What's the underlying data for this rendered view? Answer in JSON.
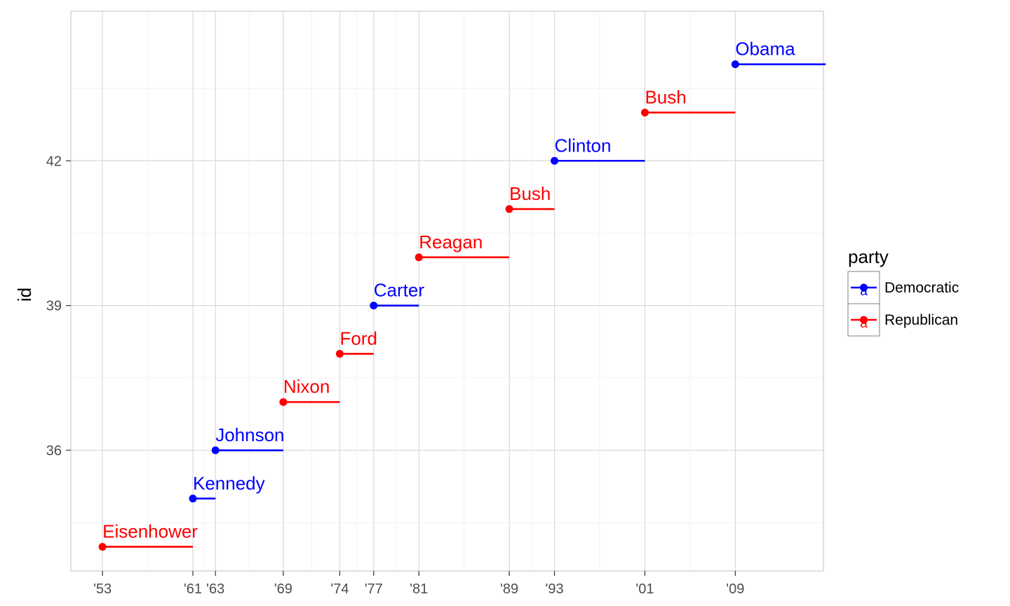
{
  "chart_data": {
    "type": "segment",
    "ylabel": "id",
    "xlim": [
      1950.2,
      2016.8
    ],
    "ylim": [
      33.5,
      45.1
    ],
    "x_ticks": [
      {
        "value": 1953,
        "label": "'53"
      },
      {
        "value": 1961,
        "label": "'61"
      },
      {
        "value": 1963,
        "label": "'63"
      },
      {
        "value": 1969,
        "label": "'69"
      },
      {
        "value": 1974,
        "label": "'74"
      },
      {
        "value": 1977,
        "label": "'77"
      },
      {
        "value": 1981,
        "label": "'81"
      },
      {
        "value": 1989,
        "label": "'89"
      },
      {
        "value": 1993,
        "label": "'93"
      },
      {
        "value": 2001,
        "label": "'01"
      },
      {
        "value": 2009,
        "label": "'09"
      }
    ],
    "y_ticks": [
      {
        "value": 36,
        "label": "36"
      },
      {
        "value": 39,
        "label": "39"
      },
      {
        "value": 42,
        "label": "42"
      }
    ],
    "presidents": [
      {
        "name": "Eisenhower",
        "id": 34,
        "start": 1953,
        "end": 1961,
        "party": "Republican"
      },
      {
        "name": "Kennedy",
        "id": 35,
        "start": 1961,
        "end": 1963,
        "party": "Democratic"
      },
      {
        "name": "Johnson",
        "id": 36,
        "start": 1963,
        "end": 1969,
        "party": "Democratic"
      },
      {
        "name": "Nixon",
        "id": 37,
        "start": 1969,
        "end": 1974,
        "party": "Republican"
      },
      {
        "name": "Ford",
        "id": 38,
        "start": 1974,
        "end": 1977,
        "party": "Republican"
      },
      {
        "name": "Carter",
        "id": 39,
        "start": 1977,
        "end": 1981,
        "party": "Democratic"
      },
      {
        "name": "Reagan",
        "id": 40,
        "start": 1981,
        "end": 1989,
        "party": "Republican"
      },
      {
        "name": "Bush",
        "id": 41,
        "start": 1989,
        "end": 1993,
        "party": "Republican"
      },
      {
        "name": "Clinton",
        "id": 42,
        "start": 1993,
        "end": 2001,
        "party": "Democratic"
      },
      {
        "name": "Bush",
        "id": 43,
        "start": 2001,
        "end": 2009,
        "party": "Republican"
      },
      {
        "name": "Obama",
        "id": 44,
        "start": 2009,
        "end": 2017,
        "party": "Democratic"
      }
    ],
    "legend": {
      "title": "party",
      "key_glyph": "a",
      "placement": "right",
      "entries": [
        {
          "name": "Democratic",
          "color": "#0000ff"
        },
        {
          "name": "Republican",
          "color": "#ff0000"
        }
      ]
    },
    "colors": {
      "Democratic": "#0000ff",
      "Republican": "#ff0000"
    },
    "grid": true
  }
}
